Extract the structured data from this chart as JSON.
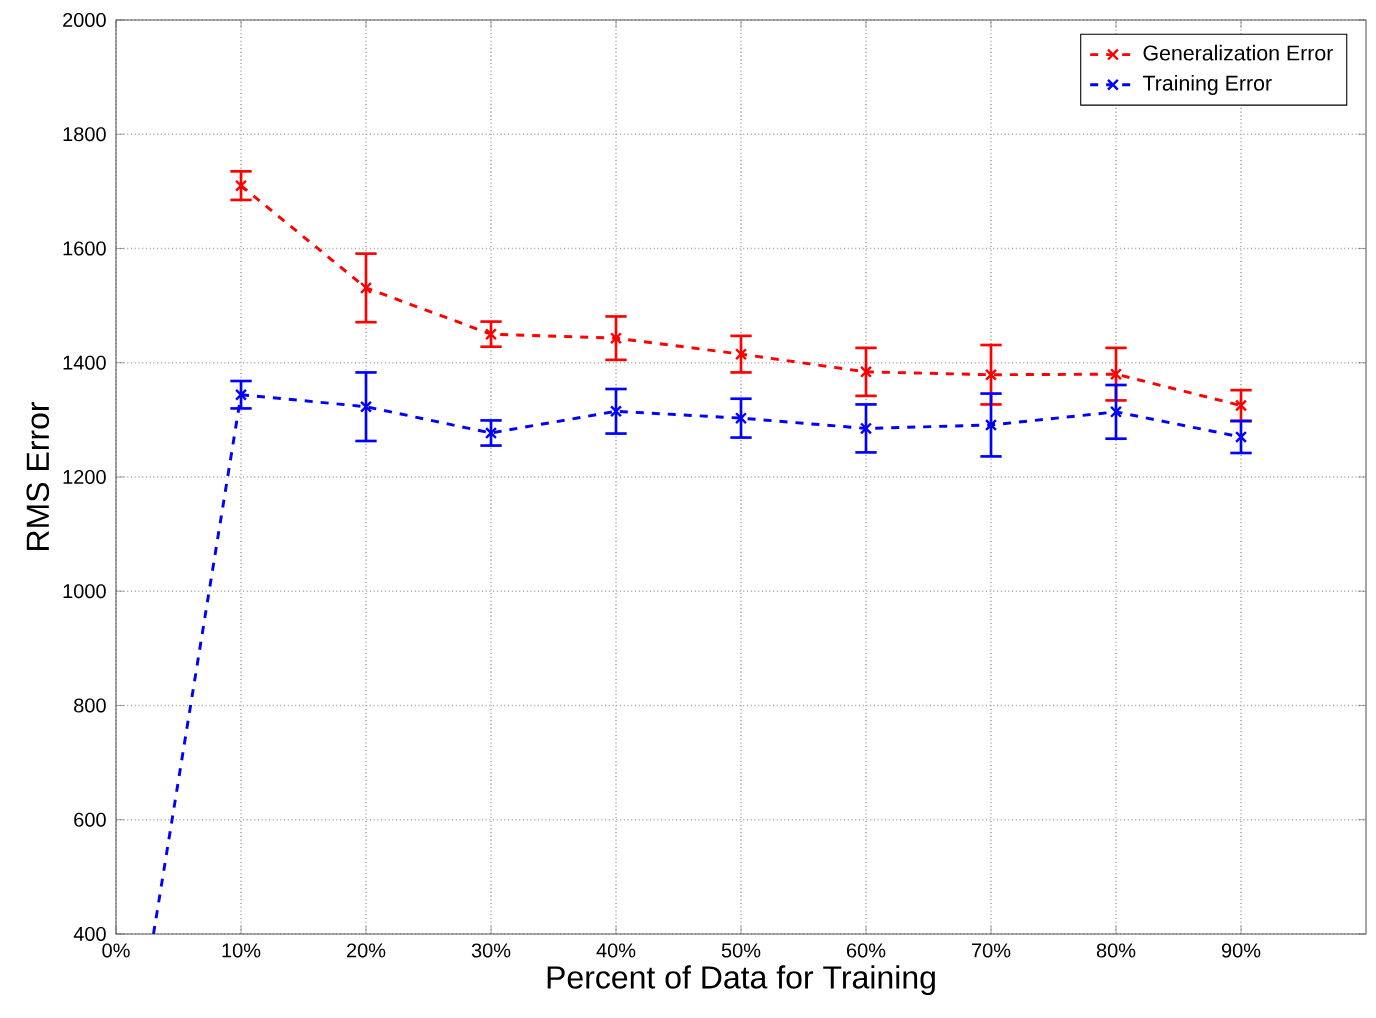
{
  "chart_data": {
    "type": "line",
    "xlabel": "Percent of Data for Training",
    "ylabel": "RMS Error",
    "x": [
      10,
      20,
      30,
      40,
      50,
      60,
      70,
      80,
      90
    ],
    "series": [
      {
        "name": "Generalization Error",
        "color": "#ff0000",
        "values": [
          1710,
          1531,
          1450,
          1443,
          1415,
          1384,
          1379,
          1380,
          1325
        ],
        "errors": [
          25,
          60,
          22,
          38,
          32,
          42,
          52,
          46,
          27
        ]
      },
      {
        "name": "Training Error",
        "color": "#0000ff",
        "values": [
          1344,
          1323,
          1277,
          1315,
          1303,
          1285,
          1291,
          1314,
          1270
        ],
        "errors": [
          24,
          60,
          22,
          39,
          34,
          42,
          55,
          47,
          28
        ]
      },
      {
        "color": "#0000ff",
        "x": [
          3,
          10
        ],
        "values": [
          400,
          1344
        ],
        "marker": "none"
      }
    ],
    "xlim": [
      0,
      100
    ],
    "ylim": [
      400,
      2000
    ],
    "xticks": [
      {
        "value": 0,
        "label": "0%"
      },
      {
        "value": 10,
        "label": "10%"
      },
      {
        "value": 20,
        "label": "20%"
      },
      {
        "value": 30,
        "label": "30%"
      },
      {
        "value": 40,
        "label": "40%"
      },
      {
        "value": 50,
        "label": "50%"
      },
      {
        "value": 60,
        "label": "60%"
      },
      {
        "value": 70,
        "label": "70%"
      },
      {
        "value": 80,
        "label": "80%"
      },
      {
        "value": 90,
        "label": "90%"
      }
    ],
    "yticks": [
      400,
      600,
      800,
      1000,
      1200,
      1400,
      1600,
      1800,
      2000
    ],
    "grid": true,
    "legend": "top right",
    "marker": "cross",
    "line_style": "dashed"
  }
}
